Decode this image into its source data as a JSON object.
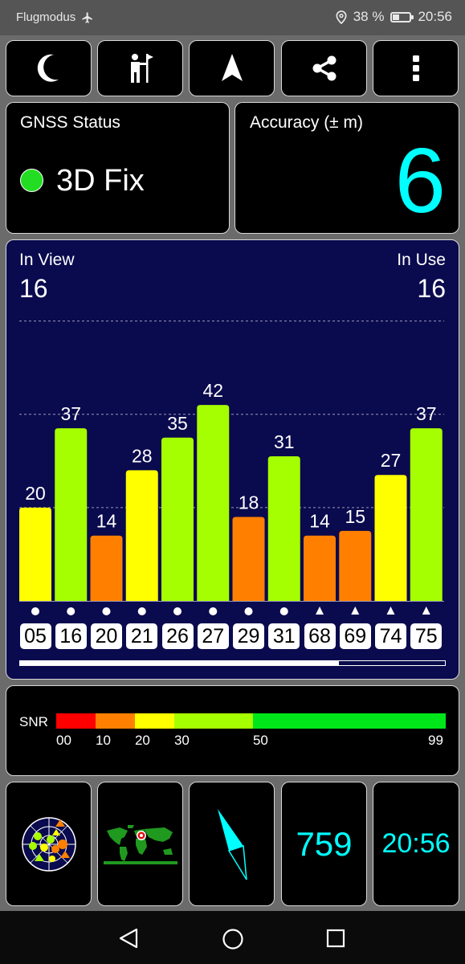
{
  "status_bar": {
    "mode_text": "Flugmodus",
    "battery_percent": "38 %",
    "battery_level": 0.38,
    "time": "20:56"
  },
  "toolbar": {
    "buttons": [
      {
        "icon": "moon-icon"
      },
      {
        "icon": "person-flag-icon"
      },
      {
        "icon": "navigation-arrow-icon"
      },
      {
        "icon": "share-icon"
      },
      {
        "icon": "more-vertical-icon"
      }
    ]
  },
  "gnss_status": {
    "title": "GNSS Status",
    "fix": "3D Fix",
    "indicator_color": "#22dd22"
  },
  "accuracy": {
    "title": "Accuracy (± m)",
    "value": "6",
    "value_color": "#00ffff"
  },
  "satellites": {
    "in_view_label": "In View",
    "in_view": "16",
    "in_use_label": "In Use",
    "in_use": "16",
    "scroll_position": 0.75
  },
  "chart_data": {
    "type": "bar",
    "categories": [
      "05",
      "16",
      "20",
      "21",
      "26",
      "27",
      "29",
      "31",
      "68",
      "69",
      "74",
      "75"
    ],
    "values": [
      20,
      37,
      14,
      28,
      35,
      42,
      18,
      31,
      14,
      15,
      27,
      37
    ],
    "markers": [
      "dot",
      "dot",
      "dot",
      "dot",
      "dot",
      "dot",
      "dot",
      "dot",
      "triangle",
      "triangle",
      "triangle",
      "triangle"
    ],
    "ylim": [
      0,
      62
    ],
    "gridlines": [
      20,
      40,
      60
    ],
    "title": "",
    "xlabel": "",
    "ylabel": ""
  },
  "snr_legend": {
    "label": "SNR",
    "segments": [
      {
        "from": 0,
        "to": 10,
        "color": "#ff0000"
      },
      {
        "from": 10,
        "to": 20,
        "color": "#ff8000"
      },
      {
        "from": 20,
        "to": 30,
        "color": "#ffff00"
      },
      {
        "from": 30,
        "to": 50,
        "color": "#a6ff00"
      },
      {
        "from": 50,
        "to": 99,
        "color": "#00e61a"
      }
    ],
    "ticks": [
      "00",
      "10",
      "20",
      "30",
      "50",
      "99"
    ]
  },
  "bottom_tiles": {
    "radar_icon": "sky-plot-icon",
    "map_icon": "world-map-icon",
    "compass_icon": "compass-needle-icon",
    "altitude": "759",
    "clock": "20:56",
    "value_color": "#00ffff"
  },
  "nav_bar": {
    "back_icon": "back-triangle-icon",
    "home_icon": "home-circle-icon",
    "recents_icon": "recents-square-icon"
  }
}
